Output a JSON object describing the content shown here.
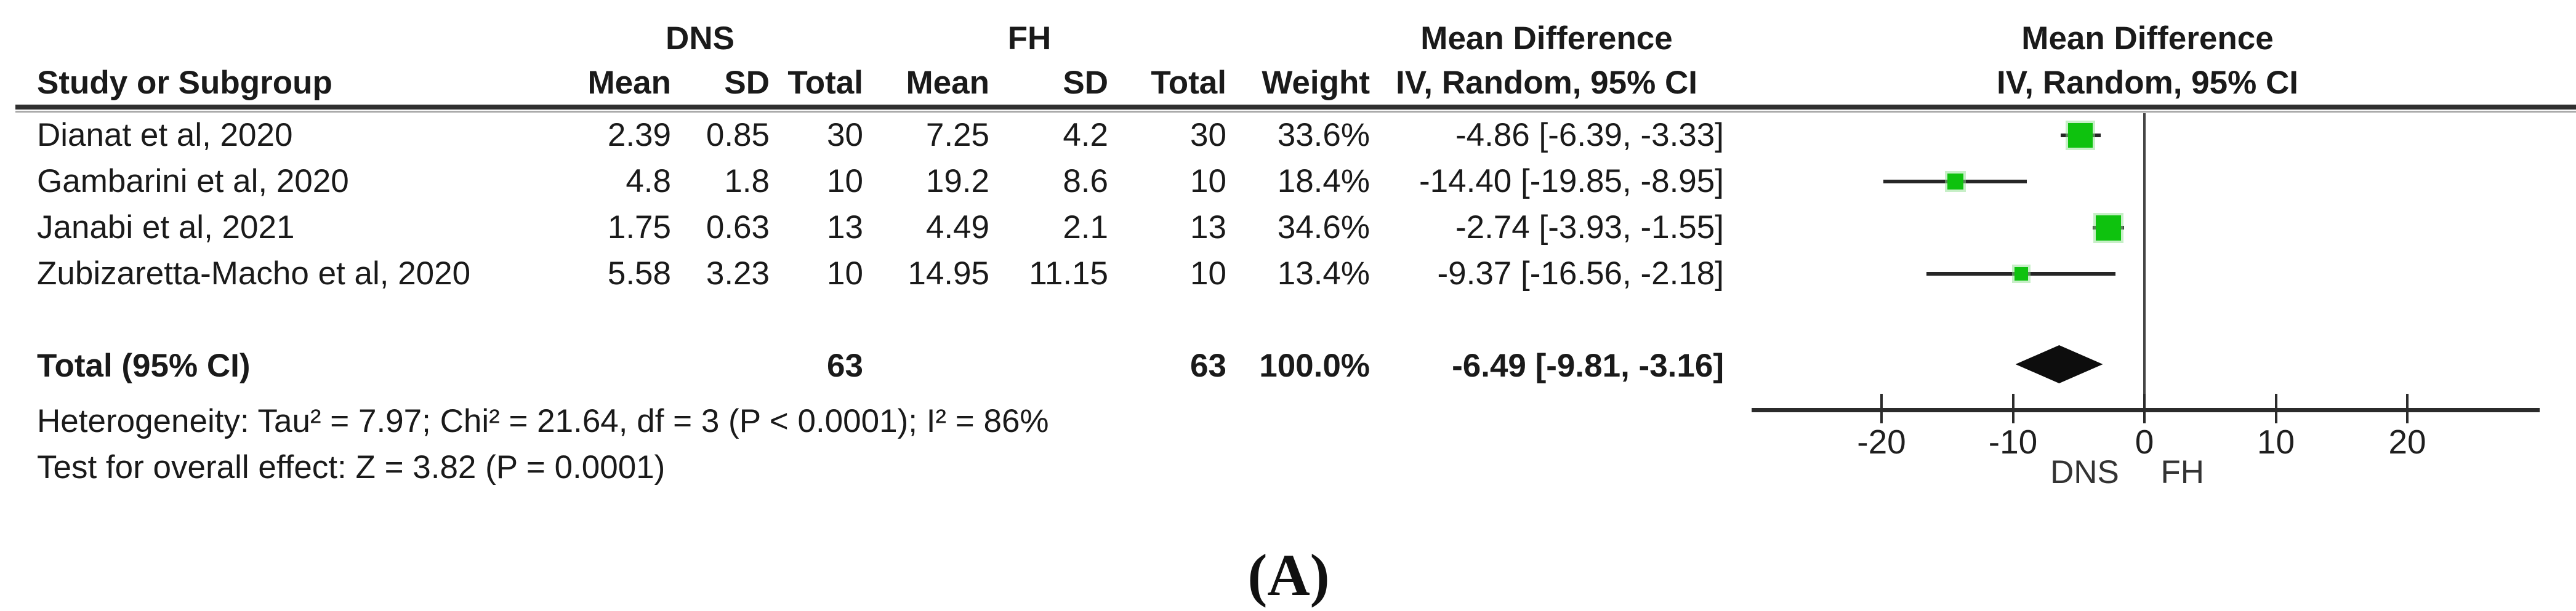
{
  "header": {
    "group1": "DNS",
    "group2": "FH",
    "study": "Study or Subgroup",
    "mean": "Mean",
    "sd": "SD",
    "total": "Total",
    "weight": "Weight",
    "md_title": "Mean Difference",
    "iv_random": "IV, Random, 95% CI"
  },
  "plot_header": {
    "md_title": "Mean Difference",
    "iv_random": "IV, Random, 95% CI"
  },
  "rows": [
    {
      "study": "Dianat et al, 2020",
      "dns_mean": "2.39",
      "dns_sd": "0.85",
      "dns_total": "30",
      "fh_mean": "7.25",
      "fh_sd": "4.2",
      "fh_total": "30",
      "weight": "33.6%",
      "ci": "-4.86 [-6.39, -3.33]"
    },
    {
      "study": "Gambarini et al, 2020",
      "dns_mean": "4.8",
      "dns_sd": "1.8",
      "dns_total": "10",
      "fh_mean": "19.2",
      "fh_sd": "8.6",
      "fh_total": "10",
      "weight": "18.4%",
      "ci": "-14.40 [-19.85, -8.95]"
    },
    {
      "study": "Janabi et al, 2021",
      "dns_mean": "1.75",
      "dns_sd": "0.63",
      "dns_total": "13",
      "fh_mean": "4.49",
      "fh_sd": "2.1",
      "fh_total": "13",
      "weight": "34.6%",
      "ci": "-2.74 [-3.93, -1.55]"
    },
    {
      "study": "Zubizaretta-Macho et al, 2020",
      "dns_mean": "5.58",
      "dns_sd": "3.23",
      "dns_total": "10",
      "fh_mean": "14.95",
      "fh_sd": "11.15",
      "fh_total": "10",
      "weight": "13.4%",
      "ci": "-9.37 [-16.56, -2.18]"
    }
  ],
  "total_row": {
    "label": "Total (95% CI)",
    "dns_total": "63",
    "fh_total": "63",
    "weight": "100.0%",
    "ci": "-6.49 [-9.81, -3.16]"
  },
  "footnotes": {
    "heterogeneity": "Heterogeneity: Tau² = 7.97; Chi² = 21.64, df = 3 (P < 0.0001); I² = 86%",
    "overall_effect": "Test for overall effect: Z = 3.82 (P = 0.0001)"
  },
  "axis_labels": {
    "left": "DNS",
    "right": "FH"
  },
  "panel_label": "(A)",
  "colors": {
    "marker_green": "#0ec20e",
    "marker_halo": "#8fdf8f",
    "diamond_black": "#0d0d0d",
    "line_dark": "#2b2b2b"
  },
  "chart_data": {
    "type": "forest",
    "title": "Mean Difference, IV, Random, 95% CI (DNS vs FH)",
    "x_axis": {
      "ticks": [
        -20,
        -10,
        0,
        10,
        20
      ],
      "range": [
        -29.9,
        30.1
      ],
      "zero_line": 0,
      "label_left": "DNS",
      "label_right": "FH"
    },
    "studies": [
      {
        "name": "Dianat et al, 2020",
        "md": -4.86,
        "ci_low": -6.39,
        "ci_high": -3.33,
        "weight_pct": 33.6
      },
      {
        "name": "Gambarini et al, 2020",
        "md": -14.4,
        "ci_low": -19.85,
        "ci_high": -8.95,
        "weight_pct": 18.4
      },
      {
        "name": "Janabi et al, 2021",
        "md": -2.74,
        "ci_low": -3.93,
        "ci_high": -1.55,
        "weight_pct": 34.6
      },
      {
        "name": "Zubizaretta-Macho et al, 2020",
        "md": -9.37,
        "ci_low": -16.56,
        "ci_high": -2.18,
        "weight_pct": 13.4
      }
    ],
    "total": {
      "name": "Total (95% CI)",
      "md": -6.49,
      "ci_low": -9.81,
      "ci_high": -3.16,
      "weight_pct": 100.0
    }
  }
}
